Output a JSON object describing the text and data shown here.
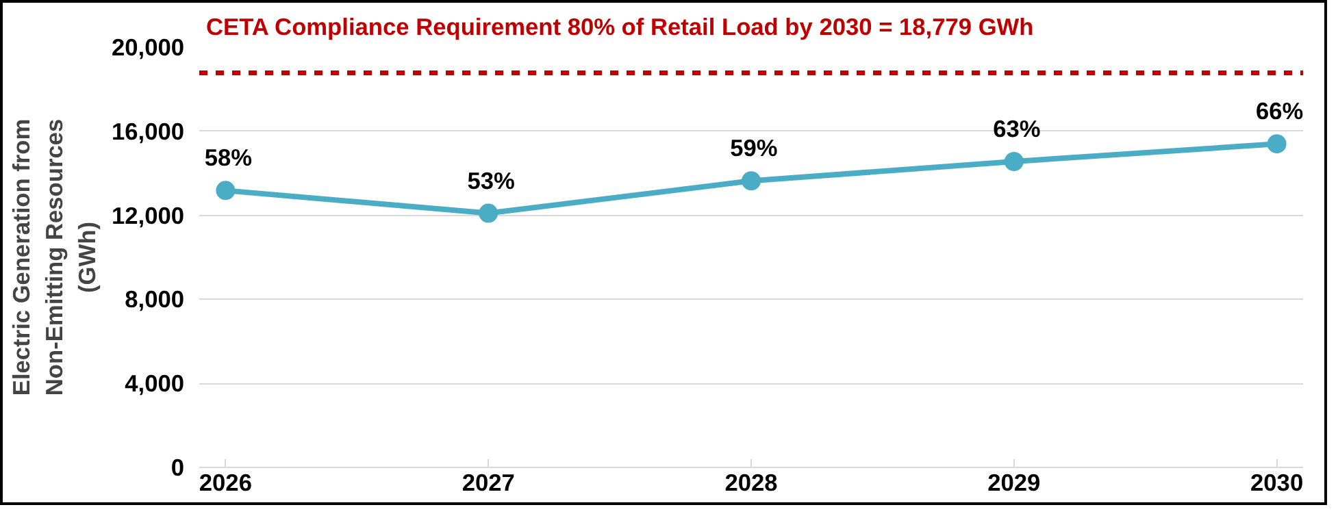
{
  "chart_data": {
    "type": "line",
    "ylabel": "Electric Generation from\nNon-Emitting Resources\n(GWh)",
    "categories": [
      "2026",
      "2027",
      "2028",
      "2029",
      "2030"
    ],
    "series": [
      {
        "color": "#4bacc6",
        "values": [
          13180,
          12100,
          13640,
          14560,
          15400
        ]
      }
    ],
    "annotations": [
      {
        "text": "58%",
        "x": "2026",
        "y": 13180
      },
      {
        "text": "53%",
        "x": "2027",
        "y": 12100
      },
      {
        "text": "59%",
        "x": "2028",
        "y": 13640
      },
      {
        "text": "63%",
        "x": "2029",
        "y": 14560
      },
      {
        "text": "66%",
        "x": "2030",
        "y": 15400
      }
    ],
    "ylim": [
      0,
      20000
    ],
    "yticks": [
      {
        "value": 0,
        "label": "0"
      },
      {
        "value": 4000,
        "label": "4,000"
      },
      {
        "value": 8000,
        "label": "8,000"
      },
      {
        "value": 12000,
        "label": "12,000"
      },
      {
        "value": 16000,
        "label": "16,000"
      },
      {
        "value": 20000,
        "label": "20,000"
      }
    ],
    "ref_lines": [
      {
        "axis": "y",
        "value": 18779,
        "label": "CETA Compliance Requirement 80% of Retail Load by 2030 = 18,779 GWh",
        "color": "#c00000",
        "line_style": "dashed"
      }
    ],
    "grid": "y",
    "marker": "circle",
    "line_style": "solid"
  }
}
